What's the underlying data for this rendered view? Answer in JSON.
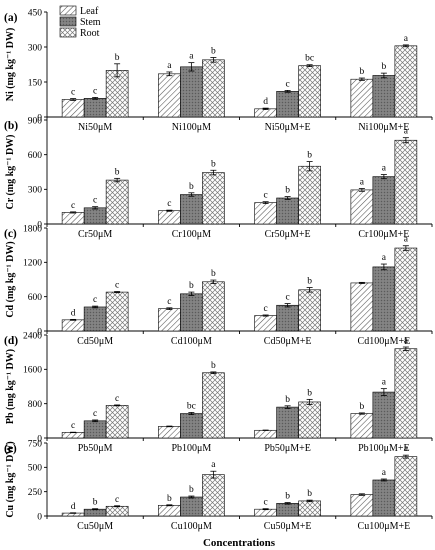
{
  "figure": {
    "xlabel": "Concentrations",
    "legend": [
      "Leaf",
      "Stem",
      "Root"
    ],
    "legend_position": "top-left"
  },
  "colors": {
    "leaf": "#ffffff",
    "stem": "#7f7f7f",
    "root": "#ffffff",
    "axis": "#000000"
  },
  "chart_data": [
    {
      "type": "bar",
      "panel": "(a)",
      "ylabel": "Ni (mg kg⁻¹ DW)",
      "ylim": [
        0,
        450
      ],
      "yticks": [
        0,
        150,
        300,
        450
      ],
      "categories": [
        "Ni50μM",
        "Ni100μM",
        "Ni50μM+E",
        "Ni100μM+E"
      ],
      "series": [
        {
          "name": "Leaf",
          "values": [
            75,
            185,
            35,
            162
          ],
          "errors": [
            4,
            8,
            3,
            5
          ],
          "letters": [
            "c",
            "a",
            "d",
            "b"
          ]
        },
        {
          "name": "Stem",
          "values": [
            80,
            215,
            110,
            178
          ],
          "errors": [
            4,
            18,
            4,
            10
          ],
          "letters": [
            "c",
            "a",
            "c",
            "b"
          ]
        },
        {
          "name": "Root",
          "values": [
            200,
            245,
            220,
            305
          ],
          "errors": [
            28,
            10,
            4,
            4
          ],
          "letters": [
            "b",
            "b",
            "bc",
            "a"
          ]
        }
      ]
    },
    {
      "type": "bar",
      "panel": "(b)",
      "ylabel": "Cr (mg kg⁻¹ DW)",
      "ylim": [
        0,
        900
      ],
      "yticks": [
        0,
        300,
        600,
        900
      ],
      "categories": [
        "Cr50μM",
        "Cr100μM",
        "Cr50μM+E",
        "Cr100μM+E"
      ],
      "series": [
        {
          "name": "Leaf",
          "values": [
            100,
            115,
            185,
            295
          ],
          "errors": [
            5,
            5,
            8,
            12
          ],
          "letters": [
            "c",
            "c",
            "c",
            "a"
          ]
        },
        {
          "name": "Stem",
          "values": [
            140,
            255,
            225,
            410
          ],
          "errors": [
            10,
            15,
            12,
            18
          ],
          "letters": [
            "c",
            "b",
            "b",
            "a"
          ]
        },
        {
          "name": "Root",
          "values": [
            380,
            445,
            500,
            725
          ],
          "errors": [
            15,
            20,
            40,
            22
          ],
          "letters": [
            "b",
            "b",
            "b",
            "a"
          ]
        }
      ]
    },
    {
      "type": "bar",
      "panel": "(c)",
      "ylabel": "Cd (mg kg⁻¹ DW)",
      "ylim": [
        0,
        1800
      ],
      "yticks": [
        0,
        600,
        1200,
        1800
      ],
      "categories": [
        "Cd50μM",
        "Cd100μM",
        "Cd50μM+E",
        "Cd100μM+E"
      ],
      "series": [
        {
          "name": "Leaf",
          "values": [
            195,
            390,
            270,
            840
          ],
          "errors": [
            8,
            15,
            10,
            10
          ],
          "letters": [
            "d",
            "c",
            "c",
            ""
          ]
        },
        {
          "name": "Stem",
          "values": [
            420,
            650,
            450,
            1120
          ],
          "errors": [
            15,
            30,
            30,
            50
          ],
          "letters": [
            "c",
            "b",
            "c",
            "a"
          ]
        },
        {
          "name": "Root",
          "values": [
            680,
            860,
            720,
            1450
          ],
          "errors": [
            10,
            30,
            40,
            40
          ],
          "letters": [
            "c",
            "b",
            "b",
            "a"
          ]
        }
      ]
    },
    {
      "type": "bar",
      "panel": "(d)",
      "ylabel": "Pb (mg kg⁻¹ DW)",
      "ylim": [
        0,
        2400
      ],
      "yticks": [
        0,
        800,
        1600,
        2400
      ],
      "categories": [
        "Pb50μM",
        "Pb100μM",
        "Pb50μM+E",
        "Pb100μM+E"
      ],
      "series": [
        {
          "name": "Leaf",
          "values": [
            130,
            270,
            180,
            570
          ],
          "errors": [
            5,
            8,
            5,
            15
          ],
          "letters": [
            "c",
            "",
            "",
            "b"
          ]
        },
        {
          "name": "Stem",
          "values": [
            400,
            570,
            720,
            1070
          ],
          "errors": [
            20,
            25,
            30,
            80
          ],
          "letters": [
            "c",
            "bc",
            "b",
            "a"
          ]
        },
        {
          "name": "Root",
          "values": [
            760,
            1520,
            840,
            2080
          ],
          "errors": [
            10,
            20,
            60,
            40
          ],
          "letters": [
            "c",
            "b",
            "b",
            "a"
          ]
        }
      ]
    },
    {
      "type": "bar",
      "panel": "(e)",
      "ylabel": "Cu (mg kg⁻¹ DW)",
      "ylim": [
        0,
        750
      ],
      "yticks": [
        0,
        250,
        500,
        750
      ],
      "categories": [
        "Cu50μM",
        "Cu100μM",
        "Cu50μM+E",
        "Cu100μM+E"
      ],
      "series": [
        {
          "name": "Leaf",
          "values": [
            30,
            110,
            70,
            220
          ],
          "errors": [
            3,
            5,
            5,
            8
          ],
          "letters": [
            "d",
            "b",
            "c",
            ""
          ]
        },
        {
          "name": "Stem",
          "values": [
            70,
            195,
            130,
            370
          ],
          "errors": [
            5,
            10,
            8,
            10
          ],
          "letters": [
            "b",
            "b",
            "b",
            "a"
          ]
        },
        {
          "name": "Root",
          "values": [
            100,
            425,
            155,
            610
          ],
          "errors": [
            5,
            35,
            8,
            15
          ],
          "letters": [
            "c",
            "a",
            "b",
            "a"
          ]
        }
      ]
    }
  ]
}
